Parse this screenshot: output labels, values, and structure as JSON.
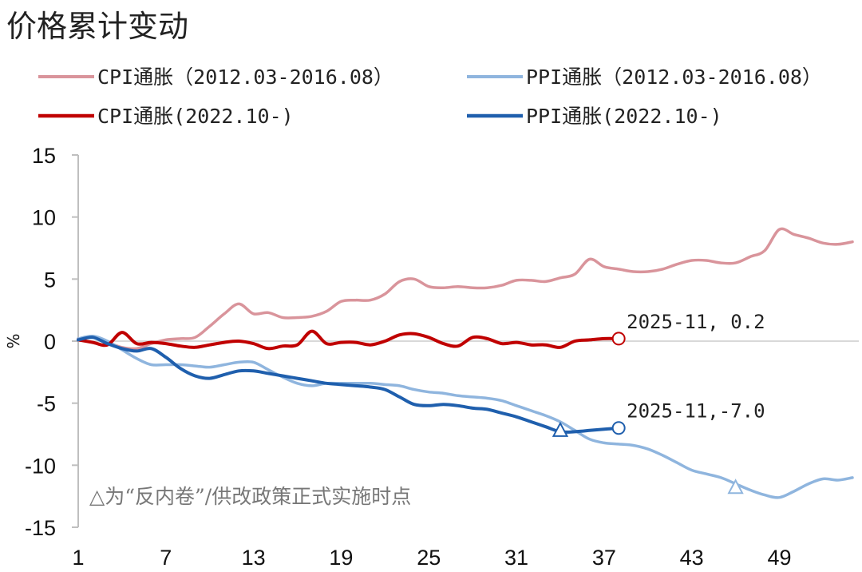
{
  "chart_data": {
    "type": "line",
    "title": "价格累计变动",
    "ylabel": "%",
    "xlabel": "",
    "xlim": [
      1,
      54
    ],
    "ylim": [
      -15,
      15
    ],
    "yticks": [
      "15",
      "10",
      "5",
      "0",
      "-5",
      "-10",
      "-15"
    ],
    "xticks": [
      "1",
      "7",
      "13",
      "19",
      "25",
      "31",
      "37",
      "43",
      "49"
    ],
    "grid": false,
    "legend_position": "top",
    "series": [
      {
        "name": "CPI通胀（2012.03-2016.08）",
        "color": "#d9949b",
        "width": 3.5,
        "x": [
          1,
          2,
          3,
          4,
          5,
          6,
          7,
          8,
          9,
          10,
          11,
          12,
          13,
          14,
          15,
          16,
          17,
          18,
          19,
          20,
          21,
          22,
          23,
          24,
          25,
          26,
          27,
          28,
          29,
          30,
          31,
          32,
          33,
          34,
          35,
          36,
          37,
          38,
          39,
          40,
          41,
          42,
          43,
          44,
          45,
          46,
          47,
          48,
          49,
          50,
          51,
          52,
          53,
          54
        ],
        "values": [
          0.2,
          0.3,
          -0.1,
          -0.5,
          -0.6,
          -0.2,
          0.1,
          0.2,
          0.3,
          1.2,
          2.2,
          3.0,
          2.2,
          2.3,
          1.9,
          1.9,
          2.0,
          2.4,
          3.2,
          3.3,
          3.3,
          3.8,
          4.8,
          5.0,
          4.4,
          4.3,
          4.4,
          4.3,
          4.3,
          4.5,
          4.9,
          4.9,
          4.8,
          5.1,
          5.4,
          6.6,
          6.0,
          5.8,
          5.6,
          5.6,
          5.8,
          6.2,
          6.5,
          6.5,
          6.3,
          6.3,
          6.8,
          7.3,
          9.0,
          8.6,
          8.3,
          7.9,
          7.8,
          8.0
        ]
      },
      {
        "name": "PPI通胀（2012.03-2016.08）",
        "color": "#8fb5de",
        "width": 3.5,
        "x": [
          1,
          2,
          3,
          4,
          5,
          6,
          7,
          8,
          9,
          10,
          11,
          12,
          13,
          14,
          15,
          16,
          17,
          18,
          19,
          20,
          21,
          22,
          23,
          24,
          25,
          26,
          27,
          28,
          29,
          30,
          31,
          32,
          33,
          34,
          35,
          36,
          37,
          38,
          39,
          40,
          41,
          42,
          43,
          44,
          45,
          46,
          47,
          48,
          49,
          50,
          51,
          52,
          53,
          54
        ],
        "values": [
          0.2,
          0.4,
          0.0,
          -0.7,
          -1.4,
          -1.9,
          -1.9,
          -1.9,
          -2.0,
          -2.1,
          -1.9,
          -1.7,
          -1.7,
          -2.3,
          -2.9,
          -3.4,
          -3.6,
          -3.4,
          -3.4,
          -3.4,
          -3.4,
          -3.5,
          -3.6,
          -3.9,
          -4.1,
          -4.2,
          -4.4,
          -4.5,
          -4.6,
          -4.8,
          -5.2,
          -5.6,
          -6.0,
          -6.5,
          -7.2,
          -7.9,
          -8.2,
          -8.3,
          -8.4,
          -8.7,
          -9.2,
          -9.8,
          -10.4,
          -10.7,
          -11.0,
          -11.5,
          -12.0,
          -12.4,
          -12.6,
          -12.1,
          -11.5,
          -11.1,
          -11.2,
          -11.0
        ]
      },
      {
        "name": "CPI通胀(2022.10-)",
        "color": "#c00000",
        "width": 4,
        "x": [
          1,
          2,
          3,
          4,
          5,
          6,
          7,
          8,
          9,
          10,
          11,
          12,
          13,
          14,
          15,
          16,
          17,
          18,
          19,
          20,
          21,
          22,
          23,
          24,
          25,
          26,
          27,
          28,
          29,
          30,
          31,
          32,
          33,
          34,
          35,
          36,
          37,
          38
        ],
        "values": [
          0.1,
          -0.1,
          -0.3,
          0.7,
          -0.2,
          -0.1,
          -0.2,
          -0.4,
          -0.5,
          -0.3,
          -0.1,
          0.0,
          -0.2,
          -0.6,
          -0.4,
          -0.3,
          0.8,
          -0.2,
          -0.1,
          -0.1,
          -0.3,
          0.0,
          0.5,
          0.6,
          0.3,
          -0.2,
          -0.4,
          0.3,
          0.2,
          -0.2,
          -0.1,
          -0.3,
          -0.3,
          -0.5,
          0.0,
          0.1,
          0.2,
          0.2
        ]
      },
      {
        "name": "PPI通胀(2022.10-)",
        "color": "#1f5fad",
        "width": 4,
        "x": [
          1,
          2,
          3,
          4,
          5,
          6,
          7,
          8,
          9,
          10,
          11,
          12,
          13,
          14,
          15,
          16,
          17,
          18,
          19,
          20,
          21,
          22,
          23,
          24,
          25,
          26,
          27,
          28,
          29,
          30,
          31,
          32,
          33,
          34,
          35,
          36,
          37,
          38
        ],
        "values": [
          0.1,
          0.3,
          -0.2,
          -0.6,
          -0.8,
          -0.6,
          -1.3,
          -2.2,
          -2.8,
          -3.0,
          -2.7,
          -2.4,
          -2.4,
          -2.6,
          -2.8,
          -3.0,
          -3.2,
          -3.4,
          -3.5,
          -3.6,
          -3.7,
          -3.9,
          -4.5,
          -5.1,
          -5.2,
          -5.1,
          -5.2,
          -5.4,
          -5.5,
          -5.8,
          -6.1,
          -6.5,
          -6.9,
          -7.3,
          -7.3,
          -7.2,
          -7.1,
          -7.0
        ]
      }
    ],
    "annotations": [
      {
        "text": "2025-11, 0.2",
        "x": 38,
        "y": 0.2,
        "color": "#c00000"
      },
      {
        "text": "2025-11,-7.0",
        "x": 38,
        "y": -7.0,
        "color": "#1f5fad"
      }
    ],
    "markers": [
      {
        "shape": "triangle",
        "x": 34,
        "y": -7.2,
        "color": "#1f5fad"
      },
      {
        "shape": "triangle",
        "x": 46,
        "y": -11.8,
        "color": "#8fb5de"
      }
    ],
    "note": "△为“反内卷”/供改政策正式实施时点"
  }
}
